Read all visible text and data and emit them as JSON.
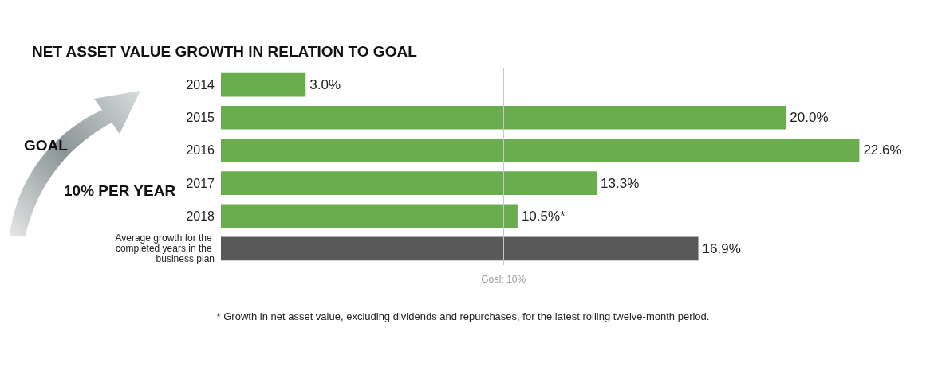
{
  "chart_data": {
    "type": "bar",
    "orientation": "horizontal",
    "title": "NET ASSET VALUE GROWTH IN RELATION TO GOAL",
    "categories": [
      "2014",
      "2015",
      "2016",
      "2017",
      "2018",
      "Average growth for the completed years in the business plan"
    ],
    "values": [
      3.0,
      20.0,
      22.6,
      13.3,
      10.5,
      16.9
    ],
    "value_labels": [
      "3.0%",
      "20.0%",
      "22.6%",
      "13.3%",
      "10.5%*",
      "16.9%"
    ],
    "colors": [
      "#6aad4f",
      "#6aad4f",
      "#6aad4f",
      "#6aad4f",
      "#6aad4f",
      "#595959"
    ],
    "ref_lines": [
      {
        "axis": "x",
        "value": 10,
        "label": "Goal: 10%",
        "color": "#c8c8c8"
      }
    ],
    "annotations": [
      "GOAL",
      "10% PER YEAR",
      "* Growth in net asset value, excluding dividends and repurchases, for the latest rolling twelve-month period."
    ]
  }
}
